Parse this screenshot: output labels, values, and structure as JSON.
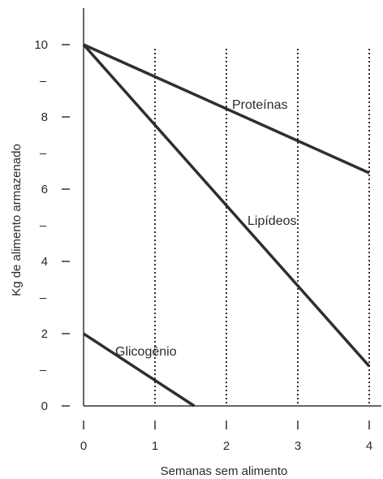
{
  "chart_data": {
    "type": "line",
    "xlabel": "Semanas sem alimento",
    "ylabel": "Kg de alimento armazenado",
    "xlim": [
      0,
      4
    ],
    "ylim": [
      0,
      11
    ],
    "x_ticks": [
      0,
      1,
      2,
      3,
      4
    ],
    "y_ticks_labeled": [
      0,
      2,
      4,
      6,
      8,
      10
    ],
    "y_ticks_minor": [
      1,
      3,
      5,
      7,
      9
    ],
    "y_minor_tick_text": "–",
    "vertical_gridlines_at": [
      1,
      2,
      3,
      4
    ],
    "gridline_style": "dotted",
    "colors": {
      "line": "#2f2f2f",
      "axis": "#333333",
      "text": "#2b2b2b"
    },
    "series": [
      {
        "name": "Proteínas",
        "x": [
          0,
          4
        ],
        "y": [
          10,
          6.45
        ]
      },
      {
        "name": "Lipídeos",
        "x": [
          0,
          4
        ],
        "y": [
          10,
          1.1
        ]
      },
      {
        "name": "Glicogênio",
        "x": [
          0,
          1.55
        ],
        "y": [
          2,
          0
        ]
      }
    ]
  }
}
